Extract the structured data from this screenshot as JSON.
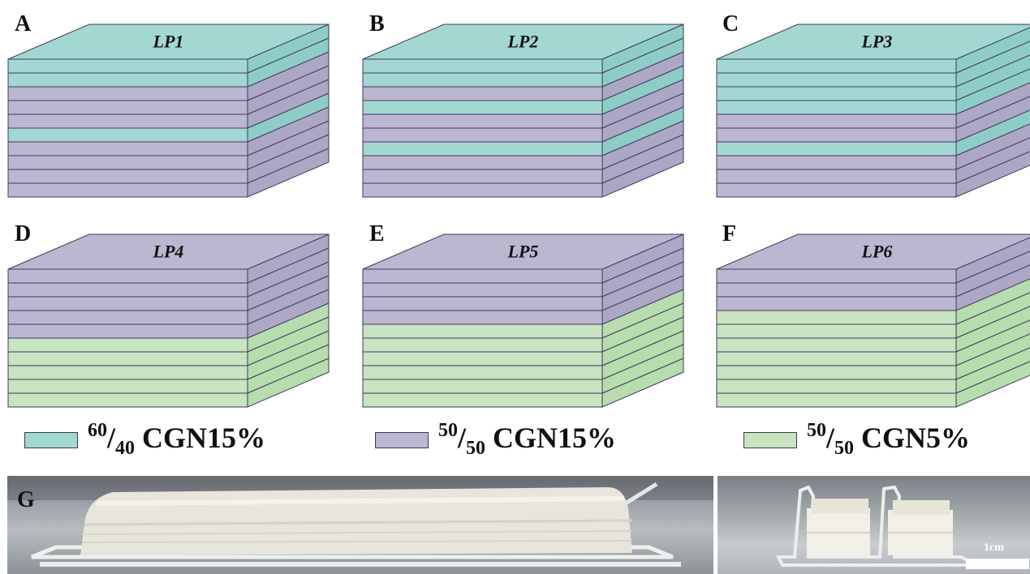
{
  "panels": [
    {
      "letter": "A",
      "label": "LP1",
      "layers": [
        "teal",
        "teal",
        "purple",
        "purple",
        "purple",
        "teal",
        "purple",
        "purple",
        "purple",
        "purple"
      ]
    },
    {
      "letter": "B",
      "label": "LP2",
      "layers": [
        "teal",
        "teal",
        "purple",
        "teal",
        "purple",
        "purple",
        "teal",
        "purple",
        "purple",
        "purple"
      ]
    },
    {
      "letter": "C",
      "label": "LP3",
      "layers": [
        "teal",
        "teal",
        "teal",
        "teal",
        "purple",
        "purple",
        "teal",
        "purple",
        "purple",
        "purple"
      ]
    },
    {
      "letter": "D",
      "label": "LP4",
      "layers": [
        "purple",
        "purple",
        "purple",
        "purple",
        "purple",
        "green",
        "green",
        "green",
        "green",
        "green"
      ]
    },
    {
      "letter": "E",
      "label": "LP5",
      "layers": [
        "purple",
        "purple",
        "purple",
        "purple",
        "green",
        "green",
        "green",
        "green",
        "green",
        "green"
      ]
    },
    {
      "letter": "F",
      "label": "LP6",
      "layers": [
        "purple",
        "purple",
        "purple",
        "green",
        "green",
        "green",
        "green",
        "green",
        "green",
        "green"
      ]
    }
  ],
  "colors": {
    "teal": {
      "front": "#a3d8d2",
      "side": "#8ecdc6",
      "top": "#a3d8d2"
    },
    "purple": {
      "front": "#bcb7d0",
      "side": "#ada7c6",
      "top": "#bcb7d0"
    },
    "green": {
      "front": "#c8e4c0",
      "side": "#b7dcae",
      "top": "#c8e4c0"
    },
    "outline": "#3e3a5c"
  },
  "legend": [
    {
      "swatch": "teal",
      "sup": "60",
      "sub": "40",
      "text": "CGN15%"
    },
    {
      "swatch": "purple",
      "sup": "50",
      "sub": "50",
      "text": "CGN15%"
    },
    {
      "swatch": "green",
      "sup": "50",
      "sub": "50",
      "text": "CGN5%"
    }
  ],
  "photo": {
    "letter": "G",
    "scale_label": "1cm"
  }
}
